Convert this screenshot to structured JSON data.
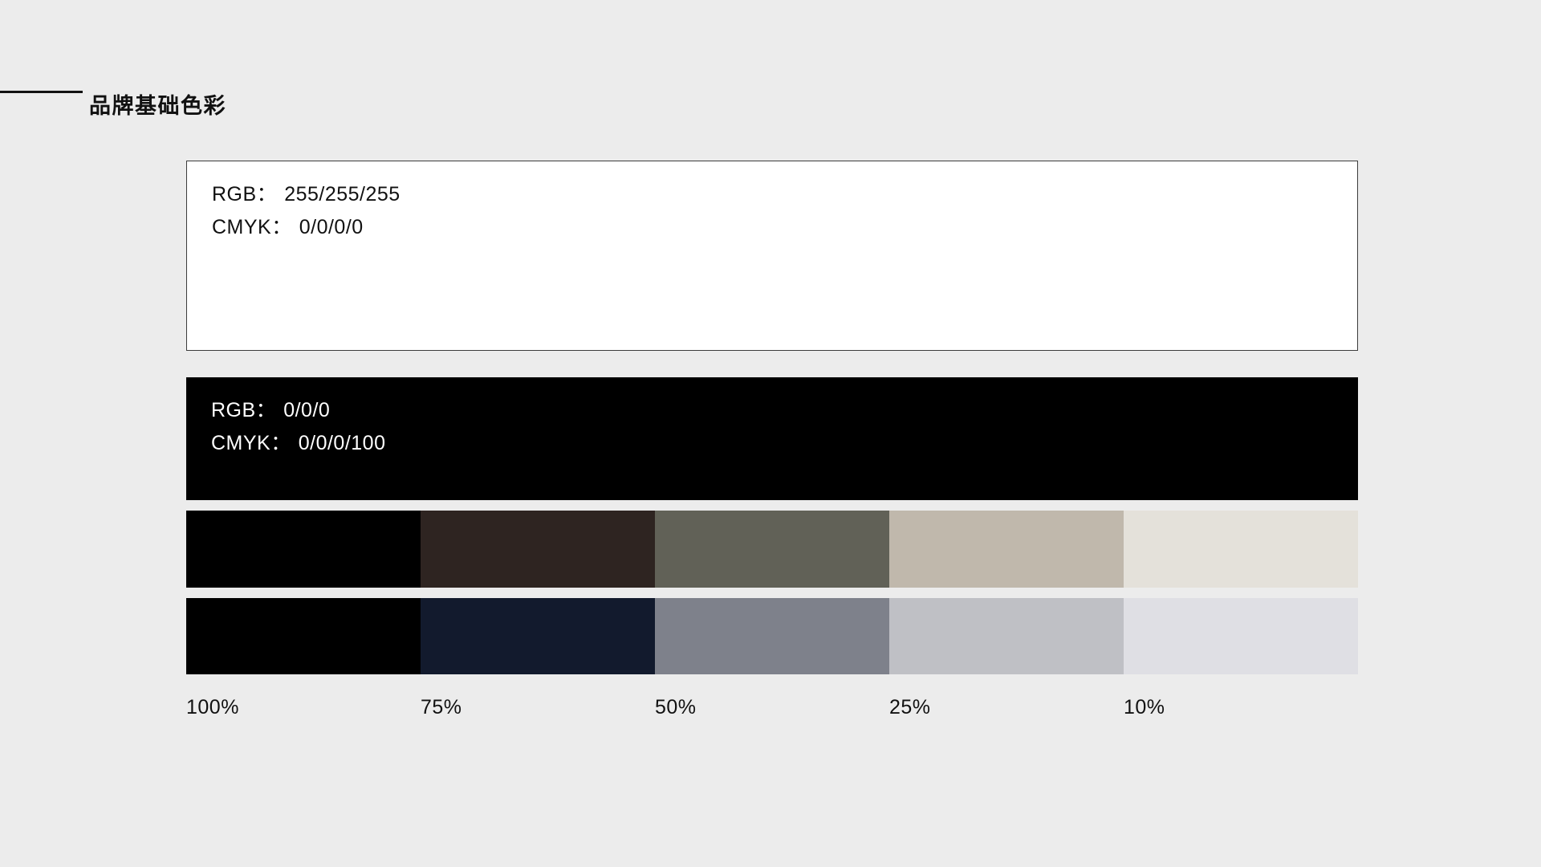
{
  "page": {
    "background": "#ececec",
    "text_color": "#111111",
    "title": "品牌基础色彩",
    "rule_color": "#111111"
  },
  "primary_colors": [
    {
      "name": "brand-white",
      "fill": "#ffffff",
      "border": "#3c3c3c",
      "text_color": "#111111",
      "rgb": {
        "label": "RGB：",
        "value": "255/255/255"
      },
      "cmyk": {
        "label": "CMYK：",
        "value": "0/0/0/0"
      }
    },
    {
      "name": "brand-black",
      "fill": "#000000",
      "border": "#000000",
      "text_color": "#ffffff",
      "rgb": {
        "label": "RGB：",
        "value": "0/0/0"
      },
      "cmyk": {
        "label": "CMYK：",
        "value": "0/0/0/100"
      }
    }
  ],
  "tint_scales": {
    "labels": [
      "100%",
      "75%",
      "50%",
      "25%",
      "10%"
    ],
    "rows": [
      {
        "name": "warm-tint-scale",
        "colors": [
          "#000000",
          "#2e2421",
          "#616157",
          "#c0b8ac",
          "#e4e1da"
        ]
      },
      {
        "name": "cool-tint-scale",
        "colors": [
          "#000000",
          "#121a2d",
          "#7e818b",
          "#bfc0c5",
          "#dfdfe4"
        ]
      }
    ]
  }
}
